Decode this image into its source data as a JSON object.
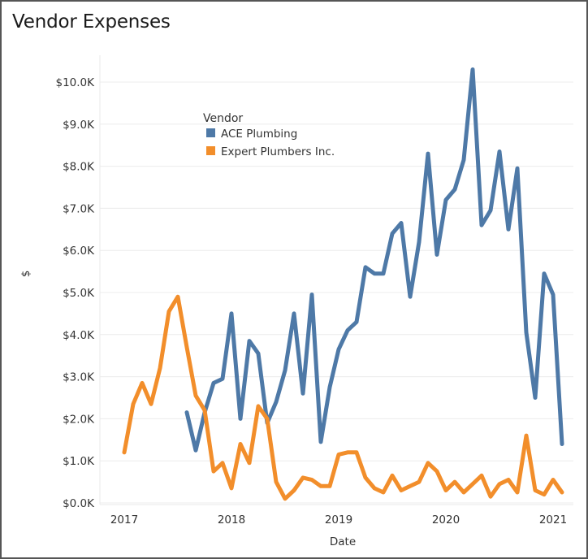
{
  "chart_data": {
    "type": "line",
    "title": "Vendor Expenses",
    "xlabel": "Date",
    "ylabel": "$",
    "ylim": [
      0,
      10600
    ],
    "xlim": [
      "2016-10",
      "2021-04"
    ],
    "grid": true,
    "legend": {
      "title": "Vendor",
      "placement": "top-left-inside"
    },
    "yticks": [
      {
        "value": 0,
        "label": "$0.0K"
      },
      {
        "value": 1000,
        "label": "$1.0K"
      },
      {
        "value": 2000,
        "label": "$2.0K"
      },
      {
        "value": 3000,
        "label": "$3.0K"
      },
      {
        "value": 4000,
        "label": "$4.0K"
      },
      {
        "value": 5000,
        "label": "$5.0K"
      },
      {
        "value": 6000,
        "label": "$6.0K"
      },
      {
        "value": 7000,
        "label": "$7.0K"
      },
      {
        "value": 8000,
        "label": "$8.0K"
      },
      {
        "value": 9000,
        "label": "$9.0K"
      },
      {
        "value": 10000,
        "label": "$10.0K"
      }
    ],
    "xticks": [
      {
        "value": "2017-01",
        "label": "2017"
      },
      {
        "value": "2018-01",
        "label": "2018"
      },
      {
        "value": "2019-01",
        "label": "2019"
      },
      {
        "value": "2020-01",
        "label": "2020"
      },
      {
        "value": "2021-01",
        "label": "2021"
      }
    ],
    "series": [
      {
        "name": "ACE Plumbing",
        "color": "#4e79a7",
        "x": [
          "2017-08",
          "2017-09",
          "2017-10",
          "2017-11",
          "2017-12",
          "2018-01",
          "2018-02",
          "2018-03",
          "2018-04",
          "2018-05",
          "2018-06",
          "2018-07",
          "2018-08",
          "2018-09",
          "2018-10",
          "2018-11",
          "2018-12",
          "2019-01",
          "2019-02",
          "2019-03",
          "2019-04",
          "2019-05",
          "2019-06",
          "2019-07",
          "2019-08",
          "2019-09",
          "2019-10",
          "2019-11",
          "2019-12",
          "2020-01",
          "2020-02",
          "2020-03",
          "2020-04",
          "2020-05",
          "2020-06",
          "2020-07",
          "2020-08",
          "2020-09",
          "2020-10",
          "2020-11",
          "2020-12",
          "2021-01",
          "2021-02"
        ],
        "values": [
          2150,
          1250,
          2150,
          2850,
          2950,
          4500,
          2000,
          3850,
          3550,
          1900,
          2400,
          3150,
          4500,
          2600,
          4950,
          1450,
          2750,
          3650,
          4100,
          4300,
          5600,
          5450,
          5450,
          6400,
          6650,
          4900,
          6200,
          8300,
          5900,
          7200,
          7450,
          8150,
          10300,
          6600,
          6950,
          8350,
          6500,
          7950,
          4050,
          2500,
          5450,
          4950,
          1400
        ]
      },
      {
        "name": "Expert Plumbers Inc.",
        "color": "#f28e2b",
        "x": [
          "2017-01",
          "2017-02",
          "2017-03",
          "2017-04",
          "2017-05",
          "2017-06",
          "2017-07",
          "2017-08",
          "2017-09",
          "2017-10",
          "2017-11",
          "2017-12",
          "2018-01",
          "2018-02",
          "2018-03",
          "2018-04",
          "2018-05",
          "2018-06",
          "2018-07",
          "2018-08",
          "2018-09",
          "2018-10",
          "2018-11",
          "2018-12",
          "2019-01",
          "2019-02",
          "2019-03",
          "2019-04",
          "2019-05",
          "2019-06",
          "2019-07",
          "2019-08",
          "2019-09",
          "2019-10",
          "2019-11",
          "2019-12",
          "2020-01",
          "2020-02",
          "2020-03",
          "2020-04",
          "2020-05",
          "2020-06",
          "2020-07",
          "2020-08",
          "2020-09",
          "2020-10",
          "2020-11",
          "2020-12",
          "2021-01",
          "2021-02"
        ],
        "values": [
          1200,
          2350,
          2850,
          2350,
          3200,
          4550,
          4900,
          3700,
          2550,
          2200,
          750,
          950,
          350,
          1400,
          950,
          2300,
          2000,
          500,
          100,
          300,
          600,
          550,
          400,
          400,
          1150,
          1200,
          1200,
          600,
          350,
          250,
          650,
          300,
          400,
          500,
          950,
          750,
          300,
          500,
          250,
          450,
          650,
          150,
          450,
          550,
          250,
          1600,
          300,
          200,
          550,
          250
        ]
      }
    ]
  }
}
